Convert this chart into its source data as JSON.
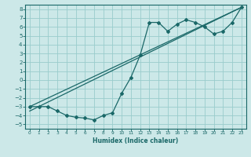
{
  "xlabel": "Humidex (Indice chaleur)",
  "ylabel": "",
  "bg_color": "#cce8e8",
  "grid_color": "#99cccc",
  "line_color": "#1a6868",
  "xlim": [
    -0.5,
    23.5
  ],
  "ylim": [
    -5.5,
    8.5
  ],
  "xticks": [
    0,
    1,
    2,
    3,
    4,
    5,
    6,
    7,
    8,
    9,
    10,
    11,
    12,
    13,
    14,
    15,
    16,
    17,
    18,
    19,
    20,
    21,
    22,
    23
  ],
  "yticks": [
    -5,
    -4,
    -3,
    -2,
    -1,
    0,
    1,
    2,
    3,
    4,
    5,
    6,
    7,
    8
  ],
  "line1_x": [
    0,
    1,
    2,
    3,
    4,
    5,
    6,
    7,
    8,
    9,
    10,
    11,
    12,
    13,
    14,
    15,
    16,
    17,
    18,
    19,
    20,
    21,
    22,
    23
  ],
  "line1_y": [
    -3.0,
    -3.0,
    -3.0,
    -3.5,
    -4.0,
    -4.2,
    -4.3,
    -4.5,
    -4.0,
    -3.7,
    -1.5,
    0.3,
    2.8,
    6.5,
    6.5,
    5.5,
    6.3,
    6.8,
    6.5,
    6.0,
    5.2,
    5.5,
    6.5,
    8.2
  ],
  "line2_x": [
    0,
    23
  ],
  "line2_y": [
    -3.0,
    8.2
  ],
  "line3_x": [
    0,
    23
  ],
  "line3_y": [
    -3.5,
    8.2
  ],
  "marker": "D",
  "markersize": 2.0,
  "linewidth": 0.9
}
